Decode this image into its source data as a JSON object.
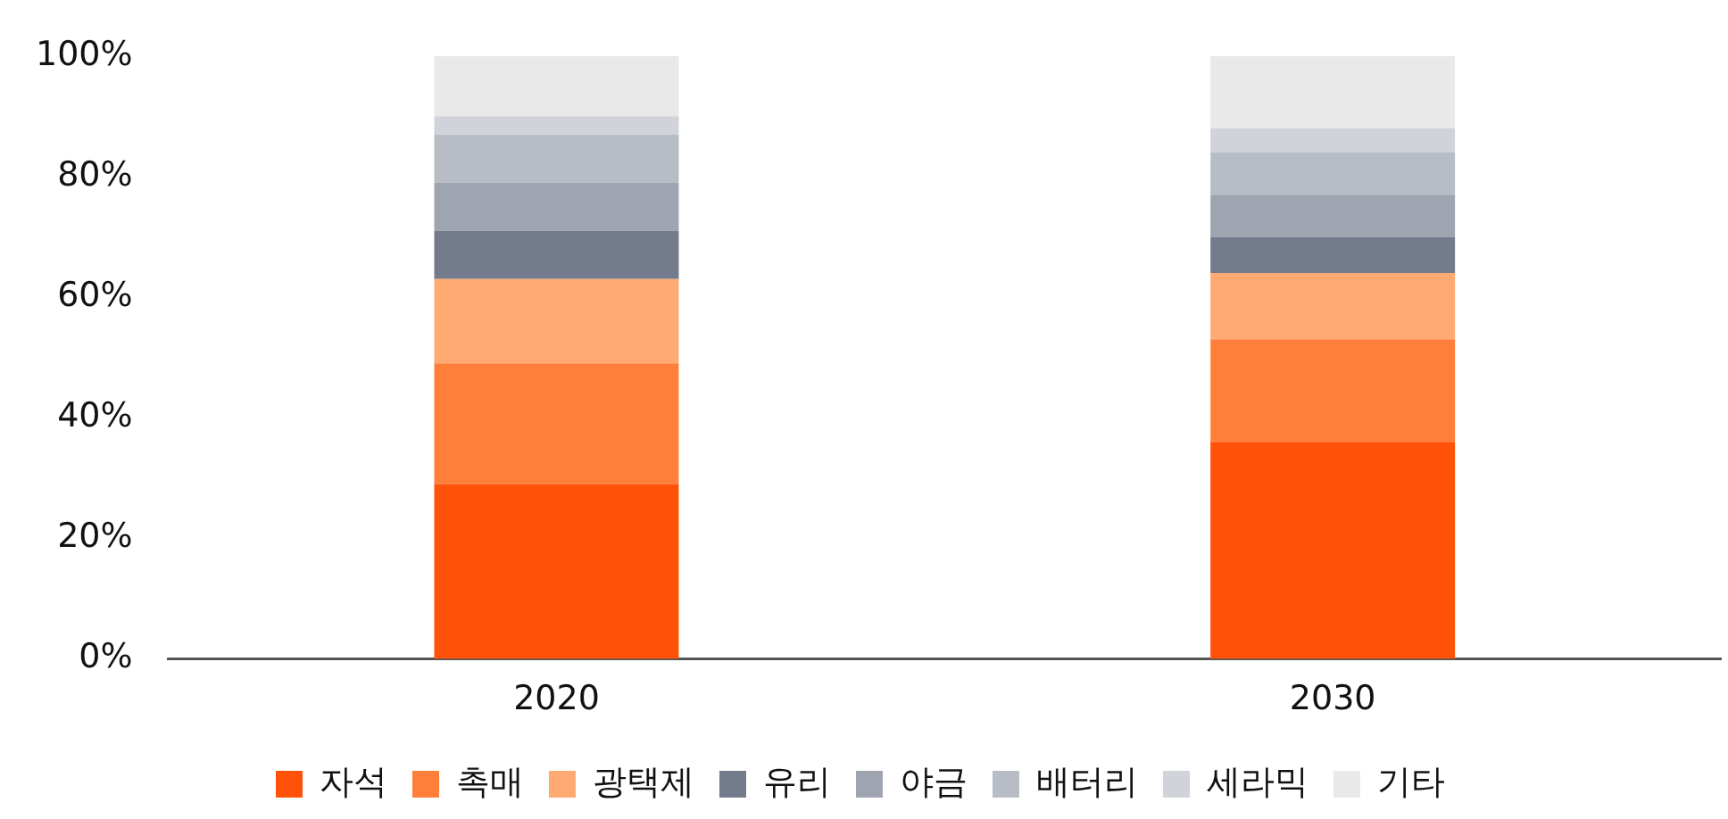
{
  "chart_data": {
    "type": "bar",
    "stacked": true,
    "categories": [
      "2020",
      "2030"
    ],
    "series": [
      {
        "name": "자석",
        "color": "#ff5208",
        "values": [
          29,
          36
        ]
      },
      {
        "name": "촉매",
        "color": "#ff7f3a",
        "values": [
          20,
          17
        ]
      },
      {
        "name": "광택제",
        "color": "#ffaa73",
        "values": [
          14,
          11
        ]
      },
      {
        "name": "유리",
        "color": "#737b8c",
        "values": [
          8,
          6
        ]
      },
      {
        "name": "야금",
        "color": "#9ea4b0",
        "values": [
          8,
          7
        ]
      },
      {
        "name": "배터리",
        "color": "#b7bcc5",
        "values": [
          8,
          7
        ]
      },
      {
        "name": "세라믹",
        "color": "#d0d3d9",
        "values": [
          3,
          4
        ]
      },
      {
        "name": "기타",
        "color": "#e9e9e9",
        "values": [
          10,
          12
        ]
      }
    ],
    "ylim": [
      0,
      100
    ],
    "yticks": [
      {
        "value": 0,
        "label": "0%"
      },
      {
        "value": 20,
        "label": "20%"
      },
      {
        "value": 40,
        "label": "40%"
      },
      {
        "value": 60,
        "label": "60%"
      },
      {
        "value": 80,
        "label": "80%"
      },
      {
        "value": 100,
        "label": "100%"
      }
    ],
    "grid": false,
    "legend": "bottom"
  }
}
